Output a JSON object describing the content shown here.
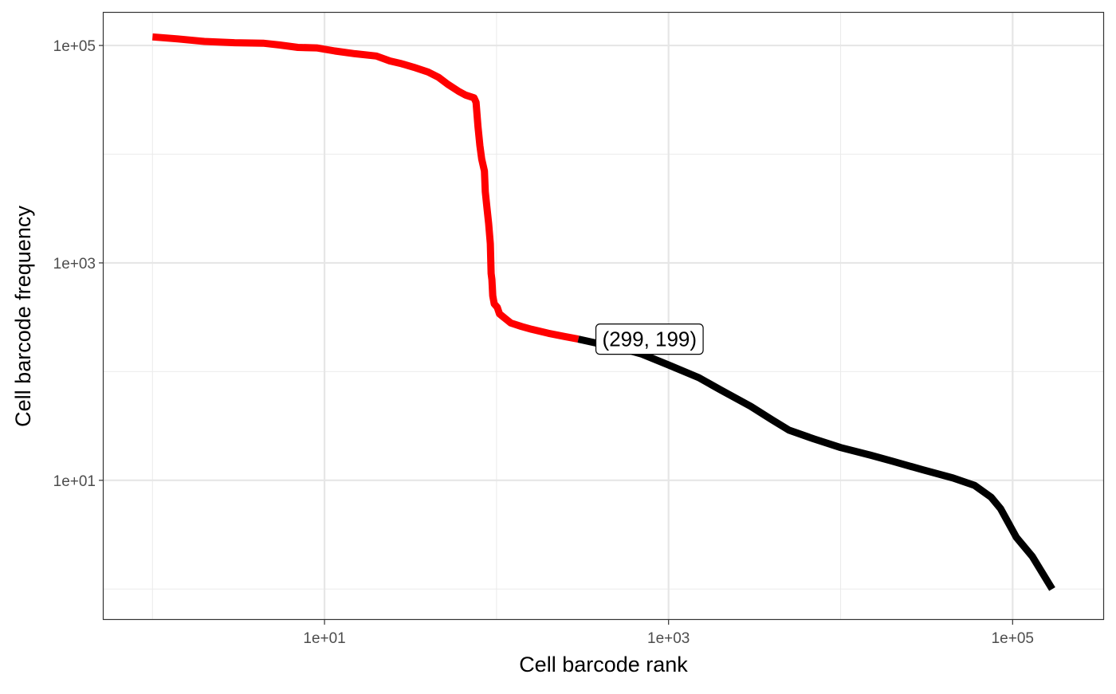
{
  "chart_data": {
    "type": "line",
    "xlabel": "Cell barcode rank",
    "ylabel": "Cell barcode frequency",
    "x_scale": "log10",
    "y_scale": "log10",
    "xlim": [
      0.52,
      340000
    ],
    "ylim": [
      0.52,
      200000
    ],
    "x_ticks": [
      {
        "value": 10,
        "label": "1e+01"
      },
      {
        "value": 1000,
        "label": "1e+03"
      },
      {
        "value": 100000,
        "label": "1e+05"
      }
    ],
    "y_ticks": [
      {
        "value": 10,
        "label": "1e+01"
      },
      {
        "value": 1000,
        "label": "1e+03"
      },
      {
        "value": 100000,
        "label": "1e+05"
      }
    ],
    "grid": true,
    "legend": "none",
    "series": [
      {
        "color": "#ff0000",
        "points": [
          [
            1,
            120000
          ],
          [
            1.4,
            115000
          ],
          [
            2,
            109000
          ],
          [
            3,
            106000
          ],
          [
            4.4,
            105000
          ],
          [
            5.5,
            101000
          ],
          [
            7,
            96000
          ],
          [
            9,
            95000
          ],
          [
            11.5,
            89000
          ],
          [
            15,
            84000
          ],
          [
            20,
            80000
          ],
          [
            24,
            72000
          ],
          [
            28,
            68000
          ],
          [
            33,
            63000
          ],
          [
            40,
            57000
          ],
          [
            46,
            51000
          ],
          [
            52,
            44000
          ],
          [
            60,
            38000
          ],
          [
            66,
            35000
          ],
          [
            74,
            33000
          ],
          [
            76,
            30000
          ],
          [
            78,
            18000
          ],
          [
            80,
            12000
          ],
          [
            82,
            9000
          ],
          [
            85,
            7000
          ],
          [
            86,
            4500
          ],
          [
            88,
            3200
          ],
          [
            90,
            2300
          ],
          [
            92,
            1500
          ],
          [
            93,
            800
          ],
          [
            94,
            700
          ],
          [
            95,
            500
          ],
          [
            97,
            420
          ],
          [
            101,
            390
          ],
          [
            104,
            340
          ],
          [
            109,
            320
          ],
          [
            121,
            280
          ],
          [
            140,
            260
          ],
          [
            160,
            245
          ],
          [
            200,
            225
          ],
          [
            250,
            210
          ],
          [
            299,
            199
          ]
        ]
      },
      {
        "color": "#000000",
        "points": [
          [
            299,
            199
          ],
          [
            400,
            180
          ],
          [
            500,
            168
          ],
          [
            700,
            145
          ],
          [
            1000,
            115
          ],
          [
            1500,
            88
          ],
          [
            2000,
            68
          ],
          [
            3000,
            48
          ],
          [
            4000,
            36
          ],
          [
            5000,
            29
          ],
          [
            7000,
            24
          ],
          [
            10000,
            20
          ],
          [
            15000,
            17
          ],
          [
            20000,
            15
          ],
          [
            30000,
            12.5
          ],
          [
            45000,
            10.5
          ],
          [
            60000,
            9
          ],
          [
            75000,
            7
          ],
          [
            85000,
            5.5
          ],
          [
            95000,
            4
          ],
          [
            105000,
            3
          ],
          [
            130000,
            2
          ],
          [
            170000,
            1
          ]
        ],
        "step_levels": [
          10,
          9,
          8,
          7,
          6,
          5,
          4,
          3,
          2,
          1
        ]
      }
    ],
    "annotation": {
      "x": 299,
      "y": 199,
      "text": "(299, 199)"
    }
  }
}
